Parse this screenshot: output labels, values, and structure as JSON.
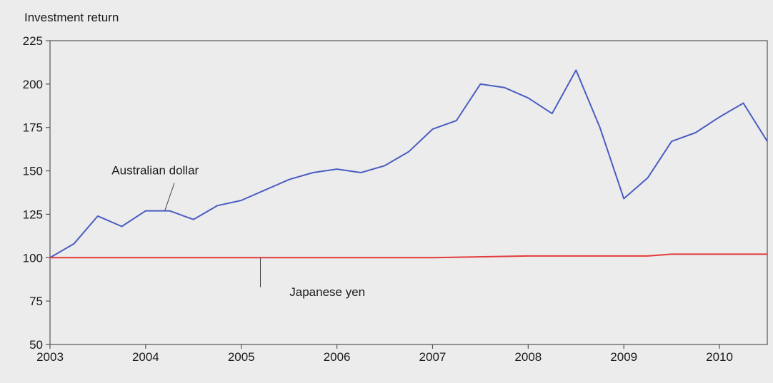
{
  "chart_data": {
    "type": "line",
    "ylabel": "Investment return",
    "ylim": [
      50,
      225
    ],
    "yticks": [
      50,
      75,
      100,
      125,
      150,
      175,
      200,
      225
    ],
    "xlim": [
      2003,
      2010.5
    ],
    "xticks": [
      2003,
      2004,
      2005,
      2006,
      2007,
      2008,
      2009,
      2010
    ],
    "grid": false,
    "series": [
      {
        "name": "Australian dollar",
        "color": "#4a5dc2",
        "x": [
          2003,
          2003.25,
          2003.5,
          2003.75,
          2004,
          2004.25,
          2004.5,
          2004.75,
          2005,
          2005.25,
          2005.5,
          2005.75,
          2006,
          2006.25,
          2006.5,
          2006.75,
          2007,
          2007.25,
          2007.5,
          2007.75,
          2008,
          2008.25,
          2008.5,
          2008.75,
          2009,
          2009.25,
          2009.5,
          2009.75,
          2010,
          2010.25,
          2010.5
        ],
        "values": [
          100,
          108,
          124,
          118,
          127,
          127,
          122,
          130,
          133,
          139,
          145,
          149,
          151,
          149,
          153,
          161,
          174,
          179,
          200,
          198,
          192,
          183,
          208,
          175,
          134,
          146,
          167,
          172,
          181,
          189,
          167
        ]
      },
      {
        "name": "Japanese yen",
        "color": "#e23a3a",
        "x": [
          2003,
          2004,
          2005,
          2006,
          2007,
          2008,
          2009,
          2009.25,
          2009.5,
          2010,
          2010.5
        ],
        "values": [
          100,
          100,
          100,
          100,
          100,
          101,
          101,
          101,
          102,
          102,
          102
        ]
      }
    ],
    "annotations": [
      {
        "text": "Australian dollar",
        "series": 0
      },
      {
        "text": "Japanese yen",
        "series": 1
      }
    ]
  }
}
